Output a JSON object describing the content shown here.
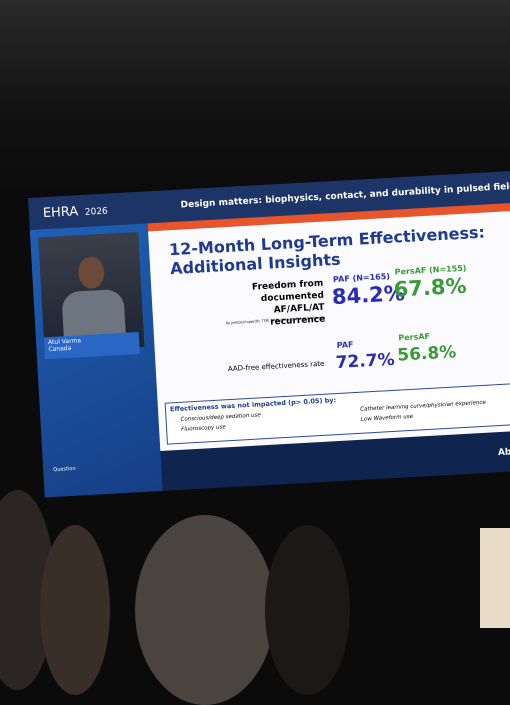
{
  "header": {
    "logo": "EHRA",
    "logo_year": "2026",
    "session_title": "Design matters: biophysics, contact, and durability in pulsed field abla"
  },
  "speaker": {
    "name": "Atul Varma",
    "country": "Canada"
  },
  "slide": {
    "title": "12-Month Long-Term Effectiveness: Additional Insights",
    "rows": [
      {
        "label": "Freedom from documented AF/AFL/AT recurrence",
        "note": "by protocol-specific TTM, ECG, HM with PVI-only ablation",
        "paf_label": "PAF (N=165)",
        "paf_value": "84.2%",
        "persaf_label": "PersAF (N=155)",
        "persaf_value": "67.8%"
      },
      {
        "label": "AAD-free effectiveness rate",
        "paf_label": "PAF",
        "paf_value": "72.7%",
        "persaf_label": "PersAF",
        "persaf_value": "56.8%"
      }
    ],
    "box_title": "Effectiveness was not impacted (p> 0.05) by:",
    "bullets": [
      "Conscious/deep sedation use",
      "Fluoroscopy use",
      "Catheter learning curve/physician experience",
      "Low Waveform use"
    ]
  },
  "question_label": "Question",
  "sponsor": "Ab"
}
